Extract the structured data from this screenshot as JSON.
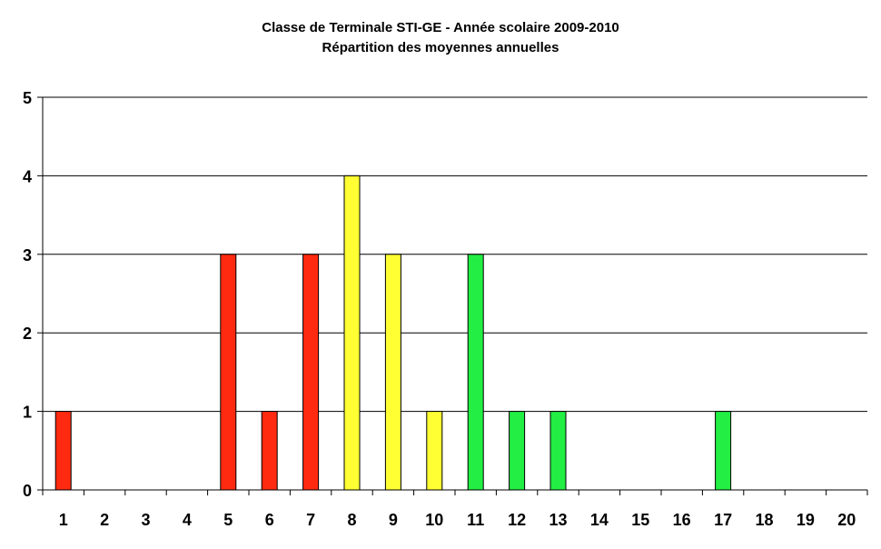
{
  "chart_data": {
    "type": "bar",
    "title": "Classe de Terminale STI-GE - Année scolaire 2009-2010",
    "subtitle": "Répartition des moyennes annuelles",
    "xlabel": "",
    "ylabel": "",
    "ylim": [
      0,
      5
    ],
    "yticks": [
      "0",
      "1",
      "2",
      "3",
      "4",
      "5"
    ],
    "grid": "horizontal",
    "legend": "none",
    "categories": [
      "1",
      "2",
      "3",
      "4",
      "5",
      "6",
      "7",
      "8",
      "9",
      "10",
      "11",
      "12",
      "13",
      "14",
      "15",
      "16",
      "17",
      "18",
      "19",
      "20"
    ],
    "values": [
      1,
      0,
      0,
      0,
      3,
      1,
      3,
      4,
      3,
      1,
      3,
      1,
      1,
      0,
      0,
      0,
      1,
      0,
      0,
      0
    ],
    "colors": [
      "#ff2a0f",
      "#ff2a0f",
      "#ff2a0f",
      "#ff2a0f",
      "#ff2a0f",
      "#ff2a0f",
      "#ff2a0f",
      "#ffff33",
      "#ffff33",
      "#ffff33",
      "#22ee44",
      "#22ee44",
      "#22ee44",
      "#22ee44",
      "#22ee44",
      "#22ee44",
      "#22ee44",
      "#22ee44",
      "#22ee44",
      "#22ee44"
    ]
  }
}
